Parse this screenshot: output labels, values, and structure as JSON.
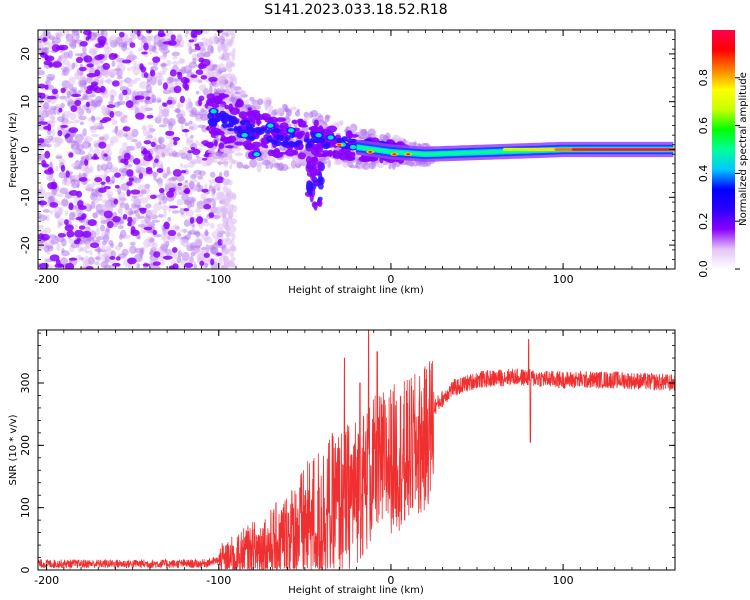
{
  "title": "S141.2023.033.18.52.R18",
  "chart_data": [
    {
      "type": "heatmap",
      "xlabel": "Height of straight line (km)",
      "ylabel": "Frequency (Hz)",
      "xlim": [
        -205,
        165
      ],
      "ylim": [
        -25,
        25
      ],
      "xticks": [
        -200,
        -100,
        0,
        100
      ],
      "yticks": [
        -20,
        -10,
        0,
        10,
        20
      ],
      "colorbar": {
        "label": "Normalized spectral amplitude",
        "range": [
          0,
          1
        ],
        "ticks": [
          "0.0",
          "0.2",
          "0.4",
          "0.6",
          "0.8"
        ],
        "colors": [
          "#ffffff",
          "#e4c4f4",
          "#8a00ff",
          "#2a00ff",
          "#0000ff",
          "#00c8ff",
          "#00ff9a",
          "#00ff00",
          "#c8ff00",
          "#ffff00",
          "#ff8000",
          "#ff0000",
          "#ff0050"
        ]
      },
      "ridge": [
        {
          "x": -100,
          "y": 6.5
        },
        {
          "x": -80,
          "y": 3.5
        },
        {
          "x": -60,
          "y": 2.5
        },
        {
          "x": -40,
          "y": 2.0
        },
        {
          "x": -20,
          "y": 0.5
        },
        {
          "x": 0,
          "y": -0.5
        },
        {
          "x": 20,
          "y": -1.0
        },
        {
          "x": 60,
          "y": -0.5
        },
        {
          "x": 100,
          "y": 0.0
        },
        {
          "x": 165,
          "y": 0.0
        }
      ]
    },
    {
      "type": "line",
      "xlabel": "Height of straight line (km)",
      "ylabel": "SNR (10 * v/v)",
      "xlim": [
        -205,
        165
      ],
      "ylim": [
        0,
        385
      ],
      "xticks": [
        -200,
        -100,
        0,
        100
      ],
      "yticks": [
        0,
        100,
        200,
        300
      ],
      "color": "#f03030",
      "envelope": [
        {
          "x": -205,
          "y": 10
        },
        {
          "x": -110,
          "y": 10
        },
        {
          "x": -100,
          "y": 15
        },
        {
          "x": -90,
          "y": 25
        },
        {
          "x": -80,
          "y": 35
        },
        {
          "x": -70,
          "y": 45
        },
        {
          "x": -60,
          "y": 60
        },
        {
          "x": -50,
          "y": 80
        },
        {
          "x": -40,
          "y": 100
        },
        {
          "x": -30,
          "y": 120
        },
        {
          "x": -20,
          "y": 140
        },
        {
          "x": -10,
          "y": 170
        },
        {
          "x": 0,
          "y": 190
        },
        {
          "x": 10,
          "y": 200
        },
        {
          "x": 20,
          "y": 220
        },
        {
          "x": 25,
          "y": 260
        },
        {
          "x": 35,
          "y": 290
        },
        {
          "x": 50,
          "y": 305
        },
        {
          "x": 70,
          "y": 310
        },
        {
          "x": 100,
          "y": 305
        },
        {
          "x": 130,
          "y": 305
        },
        {
          "x": 165,
          "y": 300
        }
      ],
      "spikes": [
        {
          "x": -13,
          "y": 385
        },
        {
          "x": -18,
          "y": 300
        },
        {
          "x": -27,
          "y": 340
        },
        {
          "x": -8,
          "y": 350
        },
        {
          "x": 80,
          "y": 370
        },
        {
          "x": 81,
          "y": 205
        },
        {
          "x": 8,
          "y": 80
        }
      ]
    }
  ]
}
